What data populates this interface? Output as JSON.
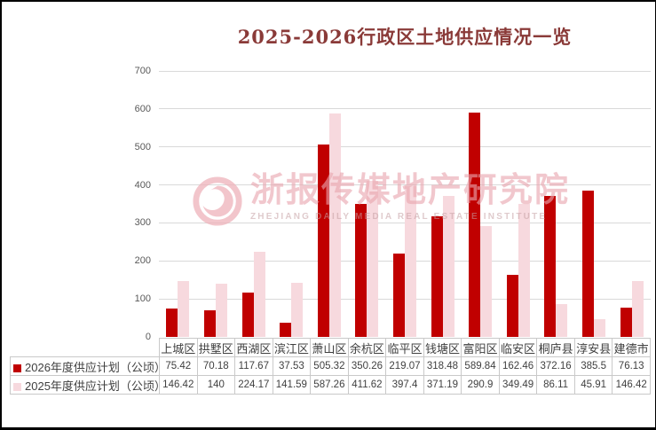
{
  "window": {
    "frame_color": "#000000",
    "background": "#ffffff"
  },
  "title": {
    "text": "2025-2026行政区土地供应情况一览",
    "color": "#8A3A38"
  },
  "watermark": {
    "cn": "浙报传媒地产研究院",
    "en": "ZHEJIANG DAILY MEDIA REAL ESTATE INSTITUTE",
    "logo": "pink-swirl-circle-logo",
    "color": "#EDB4BC"
  },
  "colors": {
    "gridline": "#D9D9D9",
    "axis_text": "#595959",
    "table_border": "#C9C9C9",
    "table_text": "#404040",
    "series_2026": "#C00000",
    "series_2025": "#F7D9DE"
  },
  "chart_data": {
    "type": "bar",
    "title": "2025-2026行政区土地供应情况一览",
    "categories": [
      "上城区",
      "拱墅区",
      "西湖区",
      "滨江区",
      "萧山区",
      "余杭区",
      "临平区",
      "钱塘区",
      "富阳区",
      "临安区",
      "桐庐县",
      "淳安县",
      "建德市"
    ],
    "series": [
      {
        "name": "2026年度供应计划（公顷）",
        "color": "#C00000",
        "values": [
          75.42,
          70.18,
          117.67,
          37.53,
          505.32,
          350.26,
          219.07,
          318.48,
          589.84,
          162.46,
          372.16,
          385.5,
          76.13
        ]
      },
      {
        "name": "2025年度供应计划（公顷）",
        "color": "#F7D9DE",
        "values": [
          146.42,
          140,
          224.17,
          141.59,
          587.26,
          411.62,
          397.4,
          371.19,
          290.9,
          349.49,
          86.11,
          45.91,
          146.42
        ]
      }
    ],
    "xlabel": "",
    "ylabel": "",
    "ylim": [
      0,
      700
    ],
    "y_ticks": [
      0,
      100,
      200,
      300,
      400,
      500,
      600,
      700
    ],
    "grid": true,
    "legend_position": "data-table-left-column",
    "data_table_shown": true
  }
}
